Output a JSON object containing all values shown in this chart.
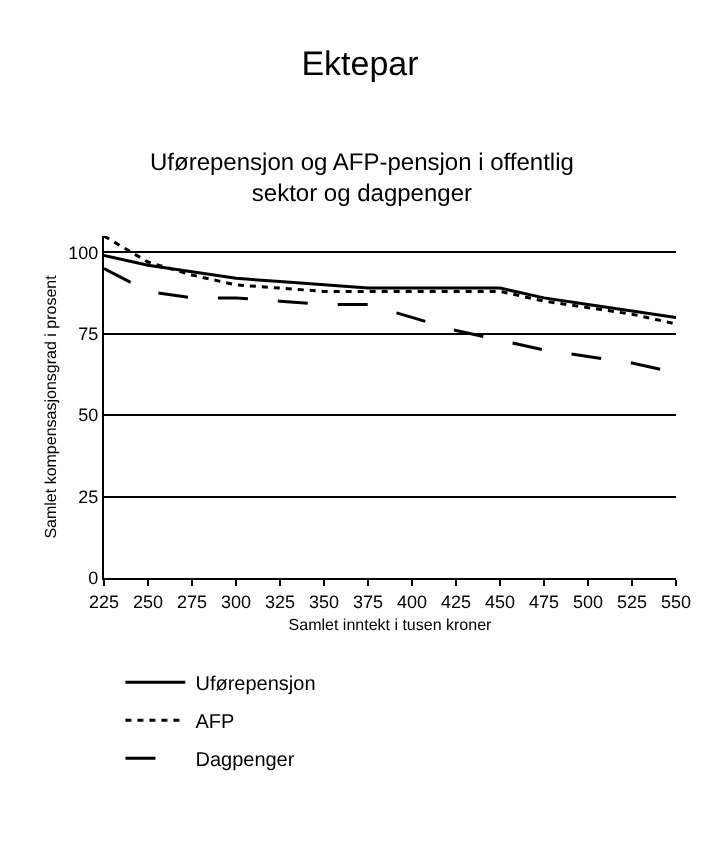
{
  "chart_data": {
    "type": "line",
    "title": "Ektepar",
    "subtitle": "Uførepensjon og AFP-pensjon i offentlig sektor og dagpenger",
    "xlabel": "Samlet inntekt i tusen kroner",
    "ylabel": "Samlet kompensasjonsgrad i prosent",
    "x": [
      225,
      250,
      275,
      300,
      325,
      350,
      375,
      400,
      425,
      450,
      475,
      500,
      525,
      550
    ],
    "xlim": [
      225,
      550
    ],
    "xticks": [
      225,
      250,
      275,
      300,
      325,
      350,
      375,
      400,
      425,
      450,
      475,
      500,
      525,
      550
    ],
    "ylim": [
      0,
      105
    ],
    "yticks": [
      0,
      25,
      50,
      75,
      100
    ],
    "grid": "y",
    "legend": "bottom",
    "marker": "none",
    "series": [
      {
        "name": "Uførepensjon",
        "color": "#000000",
        "line_style": "solid",
        "values": [
          99,
          96,
          94,
          92,
          91,
          90,
          89,
          89,
          89,
          89,
          86,
          84,
          82,
          80
        ]
      },
      {
        "name": "AFP",
        "color": "#000000",
        "line_style": "dotted",
        "values": [
          105,
          97,
          93,
          90,
          89,
          88,
          88,
          88,
          88,
          88,
          85,
          83,
          81,
          78
        ]
      },
      {
        "name": "Dagpenger",
        "color": "#000000",
        "line_style": "dashed",
        "values": [
          95,
          88,
          86,
          86,
          85,
          84,
          84,
          80,
          76,
          73,
          70,
          68,
          66,
          63
        ]
      }
    ]
  }
}
